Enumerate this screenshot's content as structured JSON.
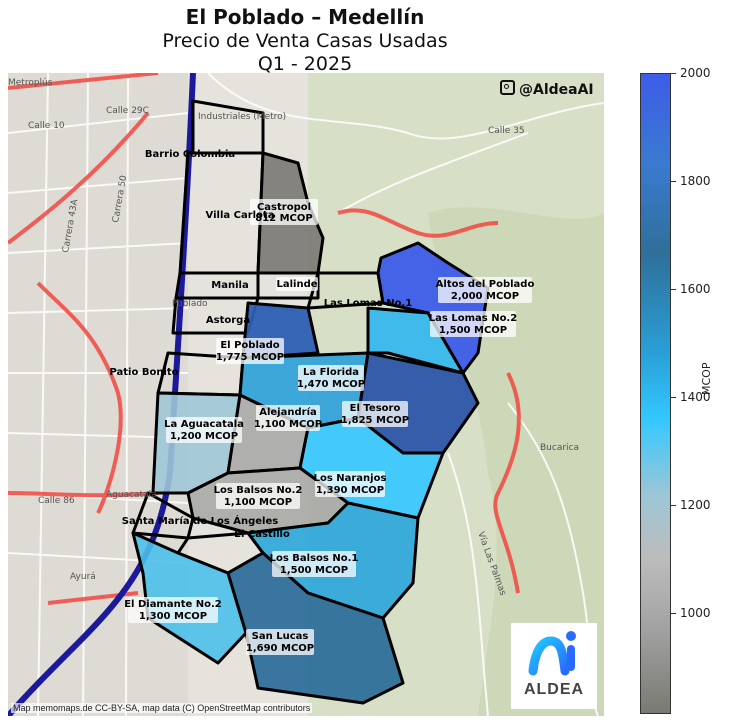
{
  "header": {
    "title": "El Poblado – Medellín",
    "subtitle": "Precio de Venta Casas Usadas",
    "period": "Q1 - 2025"
  },
  "handle": "@AldeaAI",
  "credit": "Map memomaps.de CC-BY-SA, map data (C) OpenStreetMap contributors",
  "logo": {
    "text": "ALDEA",
    "colors": [
      "#1ec8ff",
      "#2a6bff"
    ]
  },
  "colorbar": {
    "label": "MCOP",
    "min": 812,
    "max": 2000,
    "ticks": [
      1000,
      1200,
      1400,
      1600,
      1800,
      2000
    ]
  },
  "neighborhoods": [
    {
      "name": "Barrio Colombia",
      "value": null
    },
    {
      "name": "Castropol",
      "value": 812
    },
    {
      "name": "Villa Carlota",
      "value": null
    },
    {
      "name": "Manila",
      "value": null
    },
    {
      "name": "Lalinde",
      "value": null
    },
    {
      "name": "Astorga",
      "value": null
    },
    {
      "name": "Las Lomas No.1",
      "value": null
    },
    {
      "name": "Altos del Poblado",
      "value": 2000
    },
    {
      "name": "Las Lomas No.2",
      "value": 1500
    },
    {
      "name": "El Poblado",
      "value": 1775
    },
    {
      "name": "Patio Bonito",
      "value": null
    },
    {
      "name": "La Florida",
      "value": 1470
    },
    {
      "name": "La Aguacatala",
      "value": 1200
    },
    {
      "name": "Alejandría",
      "value": 1100
    },
    {
      "name": "El Tesoro",
      "value": 1825
    },
    {
      "name": "Los Naranjos",
      "value": 1390
    },
    {
      "name": "Los Balsos No.2",
      "value": 1100
    },
    {
      "name": "Santa María de Los Ángeles",
      "value": null
    },
    {
      "name": "El Castillo",
      "value": null
    },
    {
      "name": "Los Balsos No.1",
      "value": 1500
    },
    {
      "name": "El Diamante No.2",
      "value": 1300
    },
    {
      "name": "San Lucas",
      "value": 1690
    }
  ],
  "basemap_labels": [
    "Industriales (Metro)",
    "Poblado",
    "Aguacatala",
    "Ayurá",
    "Bucarica",
    "Vía Las Palmas",
    "Calle 10",
    "Calle 29C",
    "Calle 35",
    "Calle 86",
    "Carrera 43A",
    "Carrera 50",
    "Metroplús"
  ]
}
